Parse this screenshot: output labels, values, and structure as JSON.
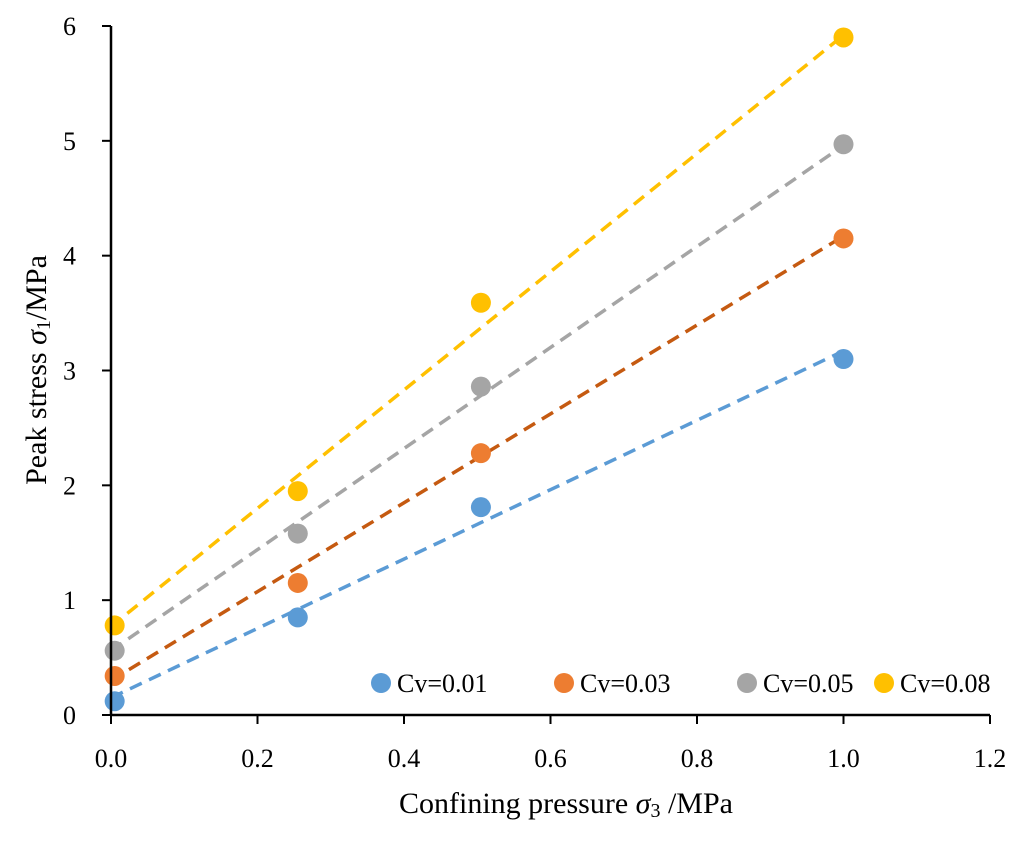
{
  "chart_data": {
    "type": "scatter",
    "title": "",
    "xlabel": {
      "prefix": "Confining pressure ",
      "symbol": "σ",
      "sub": "3",
      "suffix": " /MPa"
    },
    "ylabel": {
      "prefix": "Peak stress ",
      "symbol": "σ",
      "sub": "1",
      "suffix": "/MPa"
    },
    "xlim": [
      0,
      1.2
    ],
    "ylim": [
      0,
      6
    ],
    "x_ticks": [
      "0.0",
      "0.2",
      "0.4",
      "0.6",
      "0.8",
      "1.0",
      "1.2"
    ],
    "y_ticks": [
      "0",
      "1",
      "2",
      "3",
      "4",
      "5",
      "6"
    ],
    "grid": false,
    "legend_position": "bottom-right",
    "series": [
      {
        "name": "Cv=0.01",
        "color": "#5B9BD5",
        "trend_color": "#5B9BD5",
        "x": [
          0.005,
          0.255,
          0.505,
          1.0
        ],
        "y": [
          0.12,
          0.85,
          1.81,
          3.1
        ],
        "trend": [
          0.15,
          3.17
        ]
      },
      {
        "name": "Cv=0.03",
        "color": "#ED7D31",
        "trend_color": "#C55A11",
        "x": [
          0.005,
          0.255,
          0.505,
          1.0
        ],
        "y": [
          0.34,
          1.15,
          2.28,
          4.15
        ],
        "trend": [
          0.3,
          4.17
        ]
      },
      {
        "name": "Cv=0.05",
        "color": "#A5A5A5",
        "trend_color": "#A5A5A5",
        "x": [
          0.005,
          0.255,
          0.505,
          1.0
        ],
        "y": [
          0.56,
          1.58,
          2.86,
          4.97
        ],
        "trend": [
          0.56,
          4.96
        ]
      },
      {
        "name": "Cv=0.08",
        "color": "#FFC000",
        "trend_color": "#FFC000",
        "x": [
          0.005,
          0.255,
          0.505,
          1.0
        ],
        "y": [
          0.78,
          1.95,
          3.59,
          5.9
        ],
        "trend": [
          0.77,
          5.92
        ]
      }
    ]
  }
}
